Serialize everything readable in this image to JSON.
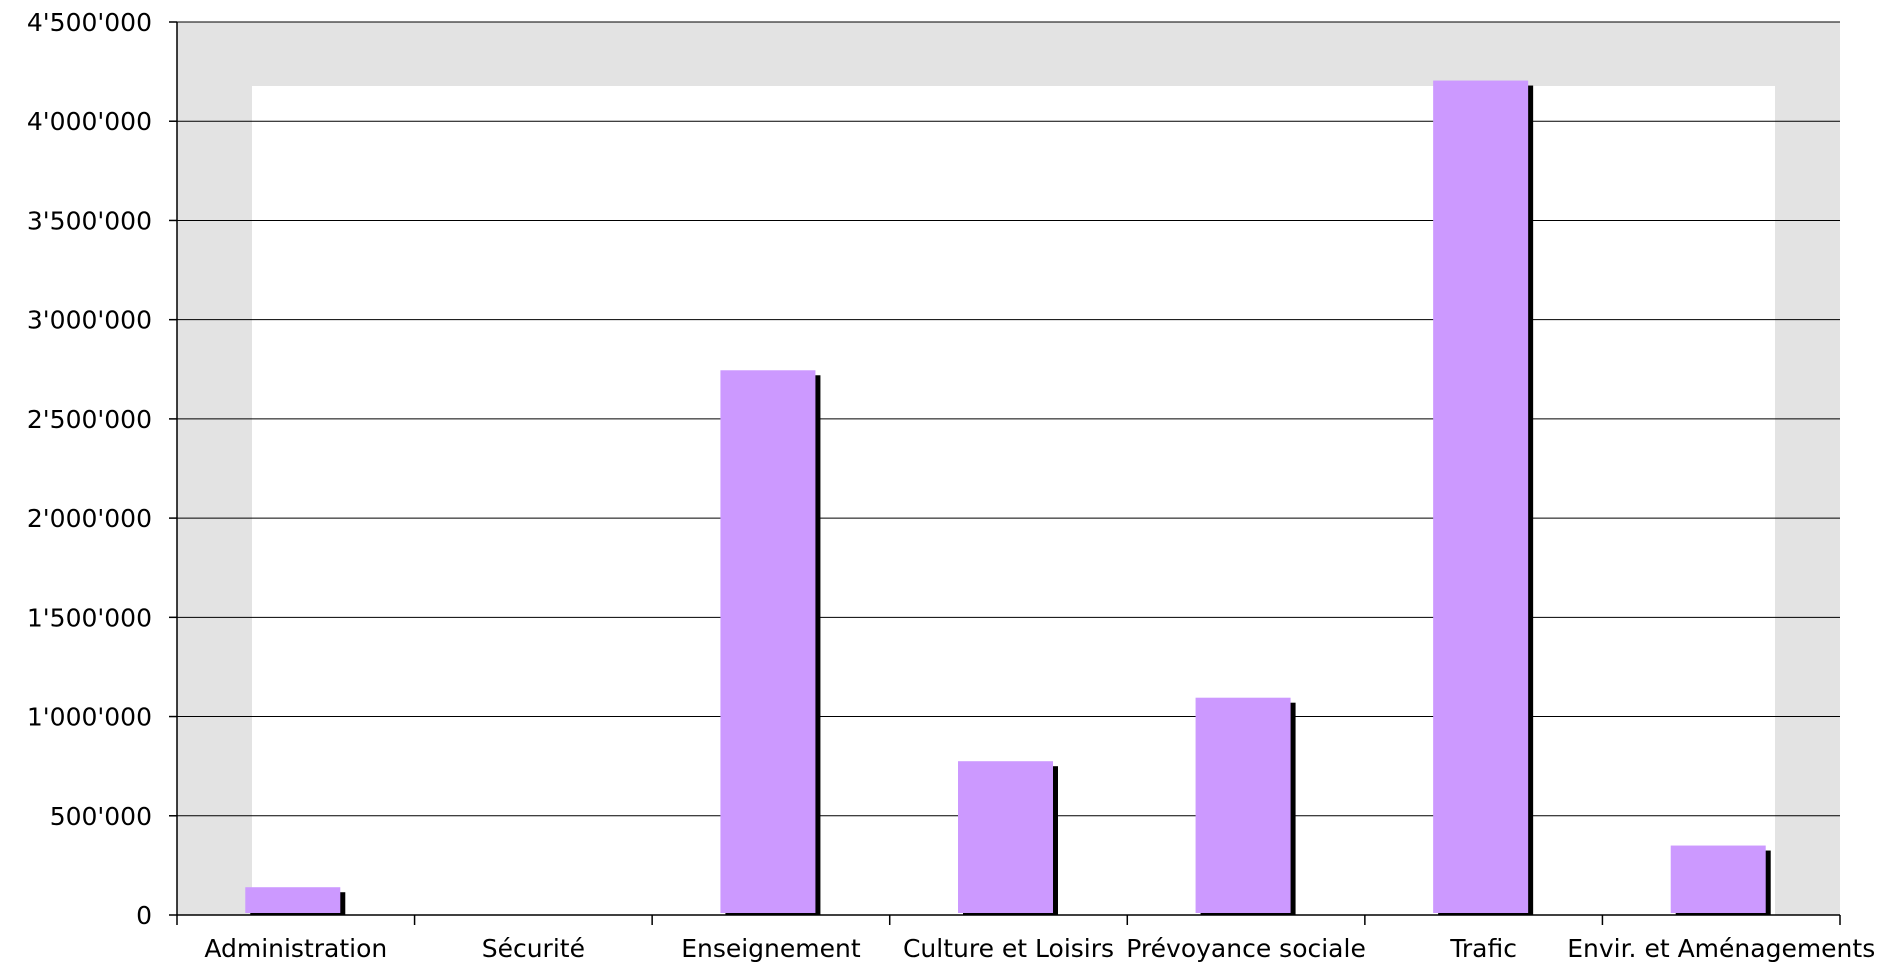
{
  "chart_data": {
    "type": "bar",
    "categories": [
      "Administration",
      "Sécurité",
      "Enseignement",
      "Culture et Loisirs",
      "Prévoyance sociale",
      "Trafic",
      "Envir. et Aménagements"
    ],
    "values": [
      140000,
      0,
      2745000,
      775000,
      1095000,
      4205000,
      350000
    ],
    "title": "",
    "xlabel": "",
    "ylabel": "",
    "ylim": [
      0,
      4500000
    ],
    "yticks": [
      0,
      500000,
      1000000,
      1500000,
      2000000,
      2500000,
      3000000,
      3500000,
      4000000,
      4500000
    ],
    "ytick_labels": [
      "0",
      "500'000",
      "1'000'000",
      "1'500'000",
      "2'000'000",
      "2'500'000",
      "3'000'000",
      "3'500'000",
      "4'000'000",
      "4'500'000"
    ],
    "grid": true,
    "legend": "none",
    "colors": {
      "bar": "#cc99ff",
      "shadow": "#000000",
      "wall": "#e3e3e3",
      "inner_wall": "#ffffff",
      "gridline": "#000000"
    }
  }
}
